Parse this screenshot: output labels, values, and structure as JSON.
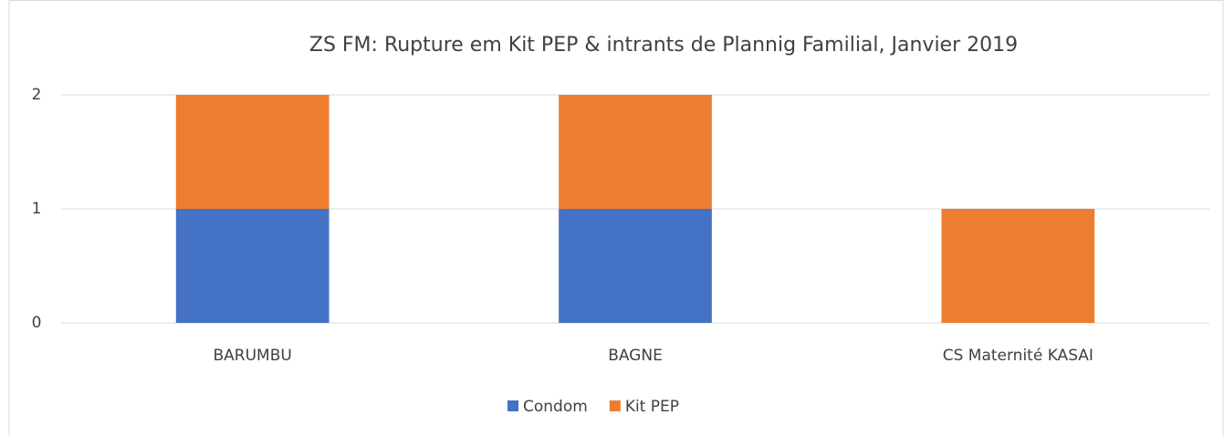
{
  "chart_data": {
    "type": "stacked_bar",
    "title": "ZS FM: Rupture em Kit PEP & intrants de Plannig Familial, Janvier 2019",
    "categories": [
      "BARUMBU",
      "BAGNE",
      "CS Maternité KASAI"
    ],
    "series": [
      {
        "name": "Condom",
        "color": "#4472c4",
        "values": [
          1,
          1,
          0
        ]
      },
      {
        "name": "Kit PEP",
        "color": "#ed7d31",
        "values": [
          1,
          1,
          1
        ]
      }
    ],
    "ylim": [
      0,
      2
    ],
    "yticks": [
      0,
      1,
      2
    ],
    "grid": true,
    "legend": "bottom"
  }
}
